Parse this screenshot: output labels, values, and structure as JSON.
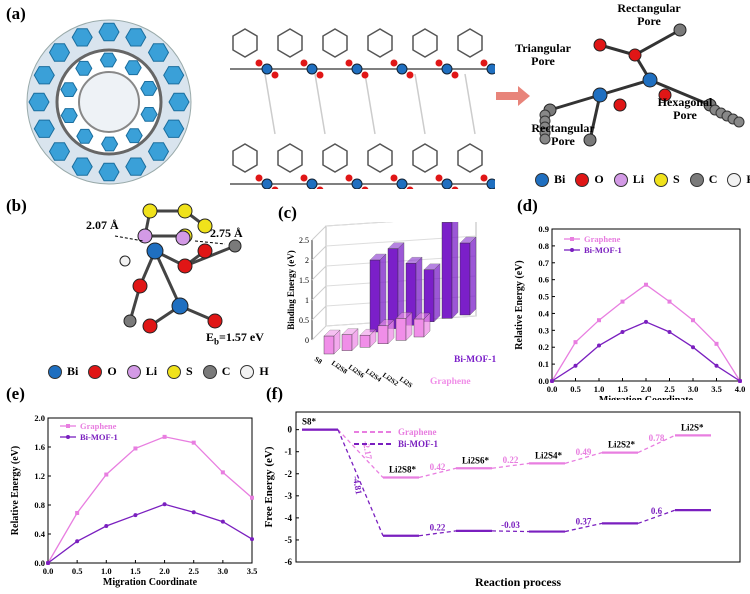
{
  "panels": {
    "a": "(a)",
    "b": "(b)",
    "c": "(c)",
    "d": "(d)",
    "e": "(e)",
    "f": "(f)"
  },
  "panel_a": {
    "pore_labels": {
      "rect_top": "Rectangular Pore",
      "triangular": "Triangular Pore",
      "hexagonal": "Hexagonal Pore",
      "rect_bottom": "Rectangular Pore"
    }
  },
  "legend_a": [
    {
      "label": "Bi",
      "color": "#1f6fc0"
    },
    {
      "label": "O",
      "color": "#e01616"
    },
    {
      "label": "Li",
      "color": "#d39ae6"
    },
    {
      "label": "S",
      "color": "#f0e21b"
    },
    {
      "label": "C",
      "color": "#7a7a7a"
    },
    {
      "label": "H",
      "color": "#f2f2f2"
    }
  ],
  "panel_b": {
    "dist1": "2.07 Å",
    "dist2": "2.75 Å",
    "eb": "E<sub>b</sub>=1.57 eV",
    "eb_text": "Eb=1.57 eV"
  },
  "legend_b": [
    {
      "label": "Bi",
      "color": "#1f6fc0"
    },
    {
      "label": "O",
      "color": "#e01616"
    },
    {
      "label": "Li",
      "color": "#d39ae6"
    },
    {
      "label": "S",
      "color": "#f0e21b"
    },
    {
      "label": "C",
      "color": "#7a7a7a"
    },
    {
      "label": "H",
      "color": "#f2f2f2"
    }
  ],
  "chart_data": [
    {
      "id": "c",
      "type": "bar",
      "ylabel": "Binding Energy (eV)",
      "categories": [
        "S8",
        "Li2S8",
        "Li2S6",
        "Li2S4",
        "Li2S2",
        "Li2S"
      ],
      "ylim": [
        0,
        2.5
      ],
      "yticks": [
        "0",
        "0.5",
        "1",
        "1.5",
        "2",
        "2.5"
      ],
      "series": [
        {
          "name": "Graphene",
          "color": "#f08ee8",
          "values": [
            0.45,
            0.4,
            0.3,
            0.45,
            0.55,
            0.45
          ]
        },
        {
          "name": "Bi-MOF-1",
          "color": "#7b1fc9",
          "values": [
            1.8,
            2.0,
            1.55,
            1.3,
            2.4,
            1.8
          ]
        }
      ]
    },
    {
      "id": "d",
      "type": "line",
      "xlabel": "Migration Coordinate",
      "ylabel": "Relative Energy (eV)",
      "xlim": [
        0,
        4.0
      ],
      "ylim": [
        0,
        0.9
      ],
      "xticks": [
        "0.0",
        "0.5",
        "1.0",
        "1.5",
        "2.0",
        "2.5",
        "3.0",
        "3.5",
        "4.0"
      ],
      "yticks": [
        "0.0",
        "0.1",
        "0.2",
        "0.3",
        "0.4",
        "0.5",
        "0.6",
        "0.7",
        "0.8",
        "0.9"
      ],
      "x": [
        0,
        0.5,
        1.0,
        1.5,
        2.0,
        2.5,
        3.0,
        3.5,
        4.0
      ],
      "series": [
        {
          "name": "Graphene",
          "color": "#e87ee0",
          "values": [
            0,
            0.23,
            0.36,
            0.47,
            0.57,
            0.47,
            0.36,
            0.22,
            0
          ]
        },
        {
          "name": "Bi-MOF-1",
          "color": "#7a1fbf",
          "values": [
            0,
            0.09,
            0.21,
            0.29,
            0.35,
            0.29,
            0.2,
            0.09,
            0
          ]
        }
      ]
    },
    {
      "id": "e",
      "type": "line",
      "xlabel": "Migration Coordinate",
      "ylabel": "Relative Energy (eV)",
      "xlim": [
        0,
        3.5
      ],
      "ylim": [
        0,
        2.0
      ],
      "xticks": [
        "0.0",
        "0.5",
        "1.0",
        "1.5",
        "2.0",
        "2.5",
        "3.0",
        "3.5"
      ],
      "yticks": [
        "0.0",
        "0.4",
        "0.8",
        "1.2",
        "1.6",
        "2.0"
      ],
      "x": [
        0,
        0.5,
        1.0,
        1.5,
        2.0,
        2.5,
        3.0,
        3.5
      ],
      "series": [
        {
          "name": "Graphene",
          "color": "#e87ee0",
          "values": [
            0,
            0.69,
            1.22,
            1.58,
            1.74,
            1.66,
            1.25,
            0.9
          ]
        },
        {
          "name": "Bi-MOF-1",
          "color": "#7a1fbf",
          "values": [
            0,
            0.3,
            0.51,
            0.66,
            0.81,
            0.7,
            0.57,
            0.33
          ]
        }
      ]
    },
    {
      "id": "f",
      "type": "line",
      "xlabel": "Reaction process",
      "ylabel": "Free Energy (eV)",
      "ylim": [
        -6,
        0.8
      ],
      "yticks": [
        "0",
        "-1",
        "-2",
        "-3",
        "-4",
        "-5",
        "-6"
      ],
      "species": [
        "S8*",
        "Li2S8*",
        "Li2S6*",
        "Li2S4*",
        "Li2S2*",
        "Li2S*"
      ],
      "series": [
        {
          "name": "Graphene",
          "color": "#e87ee0",
          "levels": [
            0,
            -2.17,
            -1.75,
            -1.53,
            -1.04,
            -0.26
          ],
          "step_labels": [
            "-2.17",
            "0.42",
            "0.22",
            "0.49",
            "0.78"
          ]
        },
        {
          "name": "Bi-MOF-1",
          "color": "#7a1fbf",
          "levels": [
            0,
            -4.81,
            -4.59,
            -4.62,
            -4.25,
            -3.65
          ],
          "step_labels": [
            "-4.81",
            "0.22",
            "-0.03",
            "0.37",
            "0.6"
          ]
        }
      ]
    }
  ]
}
